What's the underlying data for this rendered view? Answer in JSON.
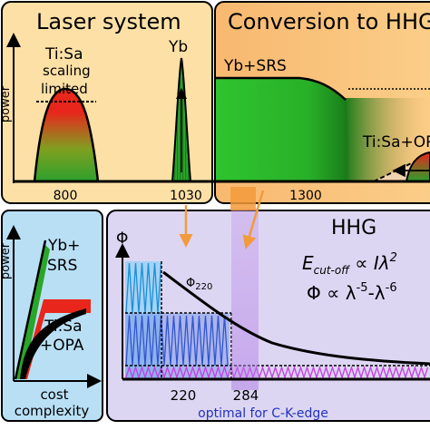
{
  "laser_panel": {
    "title": "Laser system",
    "y_axis": "power",
    "tisa_label": "Ti:Sa",
    "tisa_note_1": "scaling",
    "tisa_note_2": "limited",
    "yb_label": "Yb",
    "ticks": [
      "800",
      "1030"
    ]
  },
  "conversion_panel": {
    "title": "Conversion to HHG",
    "yb_srs_label": "Yb+SRS",
    "tisa_opa_label": "Ti:Sa+OPA",
    "tick": "1300"
  },
  "scaling_panel": {
    "y_axis": "power",
    "x_axis_1": "cost",
    "x_axis_2": "complexity",
    "yb_srs_1": "Yb+",
    "yb_srs_2": "SRS",
    "tisa_opa_1": "Ti:Sa",
    "tisa_opa_2": "+OPA"
  },
  "hhg_panel": {
    "title": "HHG",
    "y_axis": "Φ",
    "phi_label": "Φ",
    "phi_subscript": "220",
    "eq1_e": "E",
    "eq1_sub": "cut-off",
    "eq1_rest": " ∝ Iλ",
    "eq1_sup": "2",
    "eq2_main": "Φ ∝ λ",
    "eq2_sup1": "-5",
    "eq2_mid": "-λ",
    "eq2_sup2": "-6",
    "ticks": [
      "220",
      "284"
    ],
    "note": "optimal for C-K-edge"
  },
  "colors": {
    "panel_orange": "#fde0a6",
    "panel_orange_dark": "#f7b46c",
    "panel_blue": "#b9dff5",
    "panel_violet": "#ddd6f3",
    "arrow_orange": "#f6a23a",
    "arrow_violet": "#b89ce6",
    "green": "#2ca02c",
    "red": "#e8261c"
  }
}
